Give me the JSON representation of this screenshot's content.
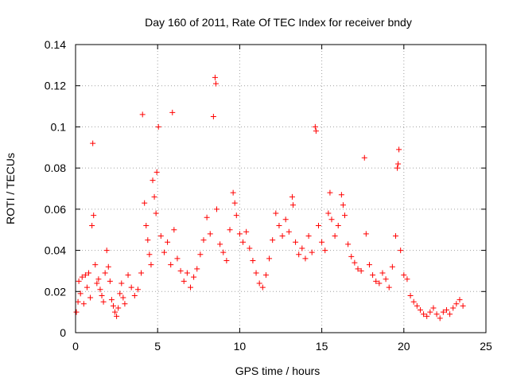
{
  "chart_data": {
    "type": "scatter",
    "title": "Day 160 of 2011, Rate Of TEC Index for receiver bndy",
    "xlabel": "GPS time / hours",
    "ylabel": "ROTI / TECUs",
    "xlim": [
      0,
      25
    ],
    "ylim": [
      0,
      0.14
    ],
    "grid": true,
    "marker": "+",
    "series_color": "#ff0000",
    "x_ticks": [
      {
        "value": 0,
        "label": "0"
      },
      {
        "value": 5,
        "label": "5"
      },
      {
        "value": 10,
        "label": "10"
      },
      {
        "value": 15,
        "label": "15"
      },
      {
        "value": 20,
        "label": "20"
      },
      {
        "value": 25,
        "label": "25"
      }
    ],
    "y_ticks": [
      {
        "value": 0,
        "label": "0"
      },
      {
        "value": 0.02,
        "label": "0.02"
      },
      {
        "value": 0.04,
        "label": "0.04"
      },
      {
        "value": 0.06,
        "label": "0.06"
      },
      {
        "value": 0.08,
        "label": "0.08"
      },
      {
        "value": 0.1,
        "label": "0.1"
      },
      {
        "value": 0.12,
        "label": "0.12"
      },
      {
        "value": 0.14,
        "label": "0.14"
      }
    ],
    "points": [
      [
        0.05,
        0.01
      ],
      [
        0.15,
        0.015
      ],
      [
        0.2,
        0.025
      ],
      [
        0.3,
        0.019
      ],
      [
        0.4,
        0.027
      ],
      [
        0.5,
        0.014
      ],
      [
        0.6,
        0.028
      ],
      [
        0.7,
        0.022
      ],
      [
        0.8,
        0.029
      ],
      [
        0.9,
        0.017
      ],
      [
        1.0,
        0.052
      ],
      [
        1.05,
        0.092
      ],
      [
        1.1,
        0.057
      ],
      [
        1.2,
        0.033
      ],
      [
        1.3,
        0.024
      ],
      [
        1.4,
        0.026
      ],
      [
        1.5,
        0.021
      ],
      [
        1.6,
        0.018
      ],
      [
        1.7,
        0.015
      ],
      [
        1.8,
        0.029
      ],
      [
        1.9,
        0.04
      ],
      [
        2.0,
        0.032
      ],
      [
        2.1,
        0.025
      ],
      [
        2.2,
        0.016
      ],
      [
        2.3,
        0.013
      ],
      [
        2.4,
        0.01
      ],
      [
        2.5,
        0.008
      ],
      [
        2.6,
        0.012
      ],
      [
        2.7,
        0.019
      ],
      [
        2.8,
        0.024
      ],
      [
        2.9,
        0.017
      ],
      [
        3.0,
        0.014
      ],
      [
        3.2,
        0.028
      ],
      [
        3.4,
        0.022
      ],
      [
        3.6,
        0.018
      ],
      [
        3.8,
        0.021
      ],
      [
        4.0,
        0.029
      ],
      [
        4.08,
        0.106
      ],
      [
        4.2,
        0.063
      ],
      [
        4.3,
        0.052
      ],
      [
        4.4,
        0.045
      ],
      [
        4.5,
        0.038
      ],
      [
        4.6,
        0.033
      ],
      [
        4.7,
        0.074
      ],
      [
        4.8,
        0.066
      ],
      [
        4.9,
        0.058
      ],
      [
        4.95,
        0.078
      ],
      [
        5.05,
        0.1
      ],
      [
        5.2,
        0.047
      ],
      [
        5.4,
        0.039
      ],
      [
        5.6,
        0.044
      ],
      [
        5.8,
        0.033
      ],
      [
        5.9,
        0.107
      ],
      [
        6.0,
        0.05
      ],
      [
        6.2,
        0.036
      ],
      [
        6.4,
        0.03
      ],
      [
        6.6,
        0.025
      ],
      [
        6.8,
        0.029
      ],
      [
        7.0,
        0.022
      ],
      [
        7.2,
        0.027
      ],
      [
        7.4,
        0.031
      ],
      [
        7.6,
        0.038
      ],
      [
        7.8,
        0.045
      ],
      [
        8.0,
        0.056
      ],
      [
        8.2,
        0.048
      ],
      [
        8.4,
        0.105
      ],
      [
        8.5,
        0.124
      ],
      [
        8.55,
        0.121
      ],
      [
        8.6,
        0.06
      ],
      [
        8.8,
        0.043
      ],
      [
        9.0,
        0.039
      ],
      [
        9.2,
        0.035
      ],
      [
        9.4,
        0.05
      ],
      [
        9.6,
        0.068
      ],
      [
        9.7,
        0.063
      ],
      [
        9.8,
        0.057
      ],
      [
        10.0,
        0.048
      ],
      [
        10.2,
        0.044
      ],
      [
        10.4,
        0.049
      ],
      [
        10.6,
        0.041
      ],
      [
        10.8,
        0.035
      ],
      [
        11.0,
        0.029
      ],
      [
        11.2,
        0.024
      ],
      [
        11.4,
        0.022
      ],
      [
        11.6,
        0.028
      ],
      [
        11.8,
        0.036
      ],
      [
        12.0,
        0.045
      ],
      [
        12.2,
        0.058
      ],
      [
        12.4,
        0.052
      ],
      [
        12.6,
        0.047
      ],
      [
        12.8,
        0.055
      ],
      [
        13.0,
        0.049
      ],
      [
        13.2,
        0.066
      ],
      [
        13.25,
        0.062
      ],
      [
        13.4,
        0.044
      ],
      [
        13.6,
        0.038
      ],
      [
        13.8,
        0.041
      ],
      [
        14.0,
        0.036
      ],
      [
        14.2,
        0.047
      ],
      [
        14.4,
        0.039
      ],
      [
        14.6,
        0.1
      ],
      [
        14.65,
        0.098
      ],
      [
        14.8,
        0.052
      ],
      [
        15.0,
        0.044
      ],
      [
        15.2,
        0.04
      ],
      [
        15.4,
        0.058
      ],
      [
        15.5,
        0.068
      ],
      [
        15.6,
        0.055
      ],
      [
        15.8,
        0.047
      ],
      [
        16.0,
        0.052
      ],
      [
        16.2,
        0.067
      ],
      [
        16.3,
        0.062
      ],
      [
        16.4,
        0.057
      ],
      [
        16.6,
        0.043
      ],
      [
        16.8,
        0.037
      ],
      [
        17.0,
        0.034
      ],
      [
        17.2,
        0.031
      ],
      [
        17.4,
        0.03
      ],
      [
        17.6,
        0.085
      ],
      [
        17.7,
        0.048
      ],
      [
        17.9,
        0.033
      ],
      [
        18.1,
        0.028
      ],
      [
        18.3,
        0.025
      ],
      [
        18.5,
        0.024
      ],
      [
        18.7,
        0.029
      ],
      [
        18.9,
        0.026
      ],
      [
        19.1,
        0.022
      ],
      [
        19.3,
        0.032
      ],
      [
        19.5,
        0.047
      ],
      [
        19.6,
        0.08
      ],
      [
        19.65,
        0.082
      ],
      [
        19.7,
        0.089
      ],
      [
        19.8,
        0.04
      ],
      [
        20.0,
        0.028
      ],
      [
        20.2,
        0.026
      ],
      [
        20.4,
        0.018
      ],
      [
        20.6,
        0.015
      ],
      [
        20.8,
        0.013
      ],
      [
        21.0,
        0.011
      ],
      [
        21.2,
        0.009
      ],
      [
        21.4,
        0.008
      ],
      [
        21.6,
        0.01
      ],
      [
        21.8,
        0.012
      ],
      [
        22.0,
        0.009
      ],
      [
        22.2,
        0.007
      ],
      [
        22.4,
        0.01
      ],
      [
        22.6,
        0.011
      ],
      [
        22.8,
        0.009
      ],
      [
        23.0,
        0.012
      ],
      [
        23.2,
        0.014
      ],
      [
        23.4,
        0.016
      ],
      [
        23.6,
        0.013
      ]
    ]
  }
}
